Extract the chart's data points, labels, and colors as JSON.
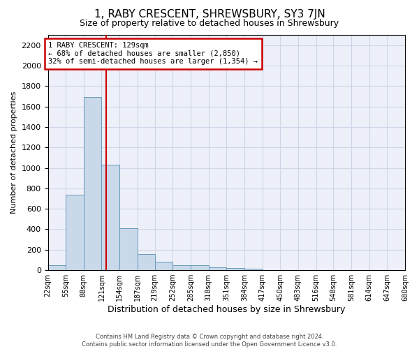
{
  "title": "1, RABY CRESCENT, SHREWSBURY, SY3 7JN",
  "subtitle": "Size of property relative to detached houses in Shrewsbury",
  "xlabel": "Distribution of detached houses by size in Shrewsbury",
  "ylabel": "Number of detached properties",
  "footer_line1": "Contains HM Land Registry data © Crown copyright and database right 2024.",
  "footer_line2": "Contains public sector information licensed under the Open Government Licence v3.0.",
  "bin_edges": [
    22,
    55,
    88,
    121,
    154,
    187,
    219,
    252,
    285,
    318,
    351,
    384,
    417,
    450,
    483,
    516,
    548,
    581,
    614,
    647,
    680
  ],
  "bar_heights": [
    50,
    740,
    1690,
    1030,
    410,
    155,
    85,
    50,
    45,
    30,
    20,
    15,
    0,
    0,
    0,
    0,
    0,
    0,
    0,
    0
  ],
  "bar_color": "#c9d9ea",
  "bar_edge_color": "#6699bb",
  "grid_color": "#d0d4e8",
  "property_size": 129,
  "vline_color": "#cc0000",
  "annotation_line1": "1 RABY CRESCENT: 129sqm",
  "annotation_line2": "← 68% of detached houses are smaller (2,850)",
  "annotation_line3": "32% of semi-detached houses are larger (1,354) →",
  "annotation_box_color": "#cc0000",
  "ylim": [
    0,
    2300
  ],
  "yticks": [
    0,
    200,
    400,
    600,
    800,
    1000,
    1200,
    1400,
    1600,
    1800,
    2000,
    2200
  ],
  "background_color": "#edf0f8",
  "title_fontsize": 11,
  "subtitle_fontsize": 9,
  "ylabel_fontsize": 8,
  "xlabel_fontsize": 9,
  "tick_label_fontsize": 7,
  "annotation_fontsize": 7.5,
  "footer_fontsize": 6
}
